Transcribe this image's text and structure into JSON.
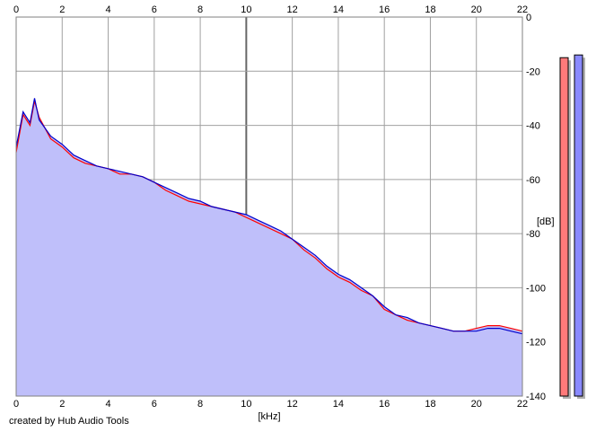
{
  "credit": "created by Hub Audio Tools",
  "chart_data": {
    "type": "area",
    "xlabel": "[kHz]",
    "ylabel": "[dB]",
    "xlim": [
      0,
      22
    ],
    "ylim": [
      -140,
      0
    ],
    "x_ticks": [
      "0",
      "2",
      "4",
      "6",
      "8",
      "10",
      "12",
      "14",
      "16",
      "18",
      "20",
      "22"
    ],
    "y_ticks": [
      "0",
      "-20",
      "-40",
      "-60",
      "-80",
      "-100",
      "-120",
      "-140"
    ],
    "grid": true,
    "series": [
      {
        "color": "#ff0000",
        "x": [
          0,
          0.3,
          0.6,
          0.8,
          1.0,
          1.5,
          2.0,
          2.5,
          3.0,
          3.5,
          4.0,
          4.5,
          5.0,
          5.5,
          6.0,
          6.5,
          7.0,
          7.5,
          8.0,
          8.5,
          9.0,
          9.5,
          10.0,
          10.5,
          11.0,
          11.5,
          12.0,
          12.5,
          13.0,
          13.5,
          14.0,
          14.5,
          15.0,
          15.5,
          16.0,
          16.5,
          17.0,
          17.5,
          18.0,
          18.5,
          19.0,
          19.5,
          20.0,
          20.5,
          21.0,
          21.5,
          22.0
        ],
        "values": [
          -50,
          -36,
          -40,
          -31,
          -37,
          -45,
          -48,
          -52,
          -54,
          -55,
          -56,
          -58,
          -58,
          -59,
          -61,
          -64,
          -66,
          -68,
          -69,
          -70,
          -71,
          -72,
          -74,
          -76,
          -78,
          -80,
          -82,
          -86,
          -89,
          -93,
          -96,
          -98,
          -101,
          -103,
          -108,
          -110,
          -112,
          -113,
          -114,
          -115,
          -116,
          -116,
          -115,
          -114,
          -114,
          -115,
          -116
        ]
      },
      {
        "color": "#0000cc",
        "x": [
          0,
          0.3,
          0.6,
          0.8,
          1.0,
          1.5,
          2.0,
          2.5,
          3.0,
          3.5,
          4.0,
          4.5,
          5.0,
          5.5,
          6.0,
          6.5,
          7.0,
          7.5,
          8.0,
          8.5,
          9.0,
          9.5,
          10.0,
          10.5,
          11.0,
          11.5,
          12.0,
          12.5,
          13.0,
          13.5,
          14.0,
          14.5,
          15.0,
          15.5,
          16.0,
          16.5,
          17.0,
          17.5,
          18.0,
          18.5,
          19.0,
          19.5,
          20.0,
          20.5,
          21.0,
          21.5,
          22.0
        ],
        "values": [
          -48,
          -35,
          -39,
          -30,
          -38,
          -44,
          -47,
          -51,
          -53,
          -55,
          -56,
          -57,
          -58,
          -59,
          -61,
          -63,
          -65,
          -67,
          -68,
          -70,
          -71,
          -72,
          -73,
          -75,
          -77,
          -79,
          -82,
          -85,
          -88,
          -92,
          -95,
          -97,
          -100,
          -103,
          -107,
          -110,
          -111,
          -113,
          -114,
          -115,
          -116,
          -116,
          -116,
          -115,
          -115,
          -116,
          -117
        ]
      }
    ],
    "level_meters": [
      {
        "color": "#ff7a7a",
        "value": -15
      },
      {
        "color": "#8a8aff",
        "value": -14
      }
    ]
  }
}
